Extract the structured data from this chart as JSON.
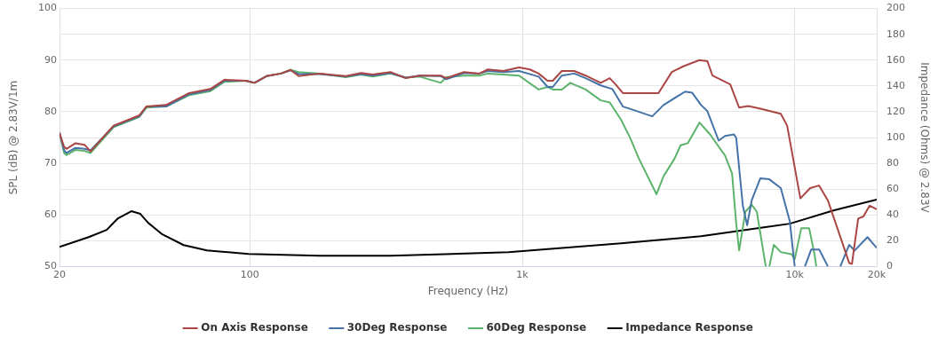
{
  "chart_data": {
    "type": "line",
    "xlabel": "Frequency (Hz)",
    "ylabel": "SPL (dB) @ 2.83V/1m",
    "y2label": "Impedance (Ohms) @ 2.83V",
    "log": "x",
    "grid": true,
    "legend": "bottom",
    "marker": "none",
    "line_style": "solid",
    "xlim": [
      20,
      20000
    ],
    "xticks": [
      20,
      100,
      {
        "value": 1000,
        "label": "1k"
      },
      {
        "value": 10000,
        "label": "10k"
      },
      {
        "value": 20000,
        "label": "20k"
      }
    ],
    "ylim": [
      50,
      100
    ],
    "yticks": [
      50,
      {
        "value": 55,
        "label": null
      },
      60,
      {
        "value": 65,
        "label": null
      },
      70,
      {
        "value": 75,
        "label": null
      },
      80,
      {
        "value": 85,
        "label": null
      },
      90,
      {
        "value": 95,
        "label": null
      },
      100
    ],
    "y2lim": [
      0,
      200
    ],
    "y2ticks": [
      0,
      20,
      40,
      60,
      80,
      100,
      120,
      140,
      160,
      180,
      200
    ],
    "series": [
      {
        "name": "On Axis Response",
        "color": "#aa4643",
        "x": [
          20,
          20.8,
          21.2,
          22.9,
          24.7,
          26,
          31.6,
          39.3,
          41.7,
          49.2,
          59.8,
          71.6,
          80.7,
          96.6,
          104,
          115,
          130,
          141,
          151,
          180,
          225,
          256,
          282,
          328,
          373,
          420,
          502,
          526,
          611,
          695,
          748,
          851,
          973,
          1065,
          1148,
          1238,
          1294,
          1396,
          1550,
          1708,
          1940,
          2094,
          2200,
          2340,
          3160,
          3540,
          3900,
          4470,
          4780,
          4990,
          5800,
          6250,
          6750,
          7480,
          8890,
          9380,
          10490,
          11400,
          12280,
          13240,
          15850,
          16220,
          17100,
          17870,
          18840,
          20000
        ],
        "values": [
          75.8,
          73.2,
          72.8,
          73.9,
          73.6,
          72.3,
          77.3,
          79.3,
          81.0,
          81.3,
          83.6,
          84.4,
          86.2,
          86.0,
          85.6,
          86.9,
          87.4,
          88.1,
          86.9,
          87.4,
          86.9,
          87.5,
          87.2,
          87.7,
          86.5,
          87.0,
          87.0,
          86.5,
          87.7,
          87.4,
          88.2,
          87.9,
          88.6,
          88.2,
          87.4,
          86.0,
          86.0,
          87.9,
          87.9,
          87.0,
          85.6,
          86.5,
          85.3,
          83.6,
          83.6,
          87.7,
          88.8,
          90.0,
          89.8,
          87.0,
          85.3,
          80.8,
          81.1,
          80.6,
          79.6,
          77.3,
          63.2,
          65.2,
          65.7,
          62.8,
          50.7,
          50.5,
          59.3,
          59.7,
          61.8,
          61.1
        ]
      },
      {
        "name": "30Deg Response",
        "color": "#4572a7",
        "x": [
          20,
          20.8,
          21.2,
          22.9,
          24.7,
          26,
          31.6,
          39.3,
          41.7,
          49.2,
          59.8,
          71.6,
          80.7,
          96.6,
          104,
          115,
          130,
          141,
          151,
          180,
          225,
          256,
          282,
          328,
          373,
          420,
          502,
          526,
          611,
          695,
          748,
          851,
          973,
          1148,
          1238,
          1294,
          1396,
          1550,
          1708,
          1940,
          2140,
          2340,
          2540,
          3000,
          3300,
          3960,
          4200,
          4530,
          4780,
          5260,
          5550,
          5990,
          6100,
          6450,
          6690,
          6950,
          7480,
          8070,
          8890,
          9590,
          10000,
          10400,
          10900,
          11500,
          12300,
          13240,
          14000,
          14700,
          15850,
          16600,
          18500,
          20000
        ],
        "values": [
          76.0,
          72.5,
          72.0,
          73.0,
          72.8,
          72.5,
          77.2,
          79.1,
          81.0,
          81.0,
          83.4,
          84.2,
          86.0,
          86.0,
          85.6,
          86.9,
          87.4,
          88.0,
          87.3,
          87.3,
          86.8,
          87.3,
          87.0,
          87.5,
          86.6,
          87.0,
          86.9,
          86.3,
          87.5,
          87.4,
          87.9,
          87.7,
          87.9,
          86.8,
          84.8,
          84.8,
          87.0,
          87.4,
          86.5,
          85.1,
          84.4,
          81.0,
          80.4,
          79.1,
          81.3,
          83.9,
          83.7,
          81.3,
          80.1,
          74.4,
          75.3,
          75.6,
          74.9,
          61.8,
          58.0,
          62.8,
          67.1,
          66.9,
          65.2,
          58.8,
          50,
          null,
          50,
          53.3,
          53.3,
          50,
          null,
          50,
          54.2,
          53.1,
          55.7,
          53.6
        ]
      },
      {
        "name": "60Deg Response",
        "color": "#5cb36b",
        "x": [
          20,
          20.8,
          21.2,
          22.9,
          24.7,
          26,
          31.6,
          39.3,
          41.7,
          49.2,
          59.8,
          71.6,
          80.7,
          96.6,
          104,
          115,
          130,
          141,
          151,
          180,
          225,
          256,
          282,
          328,
          373,
          420,
          502,
          526,
          611,
          695,
          748,
          851,
          973,
          1148,
          1238,
          1294,
          1396,
          1500,
          1708,
          1940,
          2094,
          2307,
          2490,
          2680,
          3110,
          3300,
          3620,
          3810,
          4050,
          4470,
          4890,
          5550,
          5890,
          6100,
          6250,
          6590,
          6950,
          7260,
          7830,
          7950,
          8070,
          8380,
          8890,
          9730,
          10000,
          10570,
          11300,
          11820,
          12000
        ],
        "values": [
          75.8,
          72.0,
          71.6,
          72.6,
          72.4,
          72.0,
          77.0,
          79.0,
          80.8,
          81.0,
          83.2,
          84.0,
          85.8,
          86.0,
          85.6,
          86.9,
          87.4,
          88.1,
          87.7,
          87.4,
          86.7,
          87.2,
          86.8,
          87.4,
          86.6,
          86.8,
          85.6,
          86.7,
          87.0,
          87.0,
          87.4,
          87.2,
          87.0,
          84.3,
          84.8,
          84.3,
          84.3,
          85.6,
          84.3,
          82.2,
          81.8,
          78.4,
          74.9,
          70.9,
          64.0,
          67.5,
          70.9,
          73.5,
          73.9,
          77.9,
          75.6,
          71.5,
          68.0,
          58.3,
          53.1,
          60.6,
          62.0,
          60.6,
          50,
          null,
          50,
          54.2,
          52.8,
          52.4,
          51.4,
          57.4,
          57.4,
          52.4,
          50
        ]
      },
      {
        "name": "Impedance Response",
        "color": "#000000",
        "axis": "y2",
        "x": [
          20,
          25.6,
          29.8,
          32.8,
          36.7,
          39.6,
          42.3,
          47.7,
          57.1,
          69.5,
          98.8,
          180,
          328,
          890,
          2307,
          4530,
          9590,
          13960,
          20000
        ],
        "values": [
          15.2,
          22.8,
          28.4,
          37.4,
          42.9,
          40.8,
          33.9,
          24.9,
          16.6,
          12.5,
          9.7,
          8.3,
          8.3,
          11.1,
          18.0,
          23.5,
          33.2,
          43.6,
          51.9
        ]
      }
    ]
  }
}
